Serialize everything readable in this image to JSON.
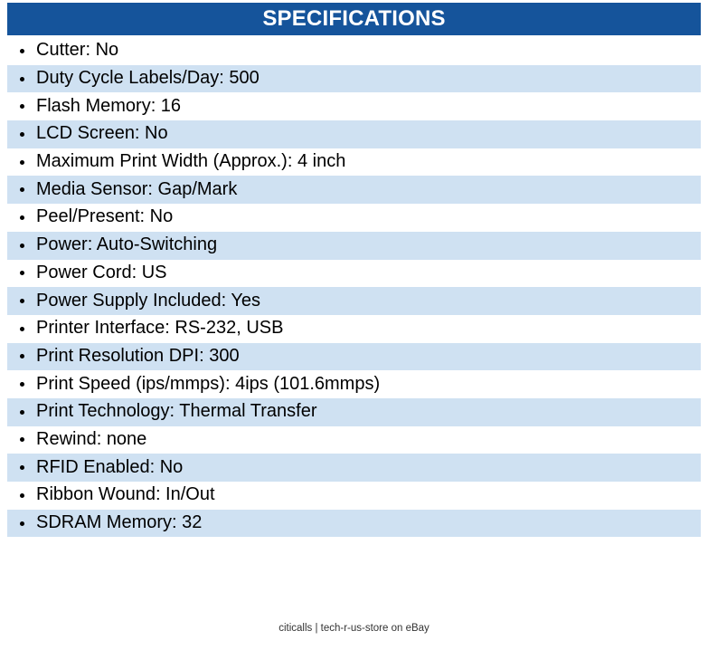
{
  "header": {
    "title": "SPECIFICATIONS"
  },
  "specs": {
    "items": [
      "Cutter: No",
      "Duty Cycle Labels/Day: 500",
      "Flash Memory: 16",
      "LCD Screen: No",
      "Maximum Print Width (Approx.): 4 inch",
      "Media Sensor: Gap/Mark",
      "Peel/Present: No",
      "Power: Auto-Switching",
      "Power Cord: US",
      "Power Supply Included: Yes",
      "Printer Interface: RS-232, USB",
      "Print Resolution DPI: 300",
      "Print Speed (ips/mmps): 4ips (101.6mmps)",
      "Print Technology: Thermal Transfer",
      "Rewind: none",
      "RFID Enabled: No",
      "Ribbon Wound: In/Out",
      "SDRAM Memory: 32"
    ]
  },
  "footer": {
    "text": "citicalls | tech-r-us-store on eBay"
  },
  "colors": {
    "header_bg": "#15549B",
    "header_text": "#FFFFFF",
    "row_alt_bg": "#CFE1F2",
    "row_text": "#000000",
    "footer_text": "#333333"
  }
}
